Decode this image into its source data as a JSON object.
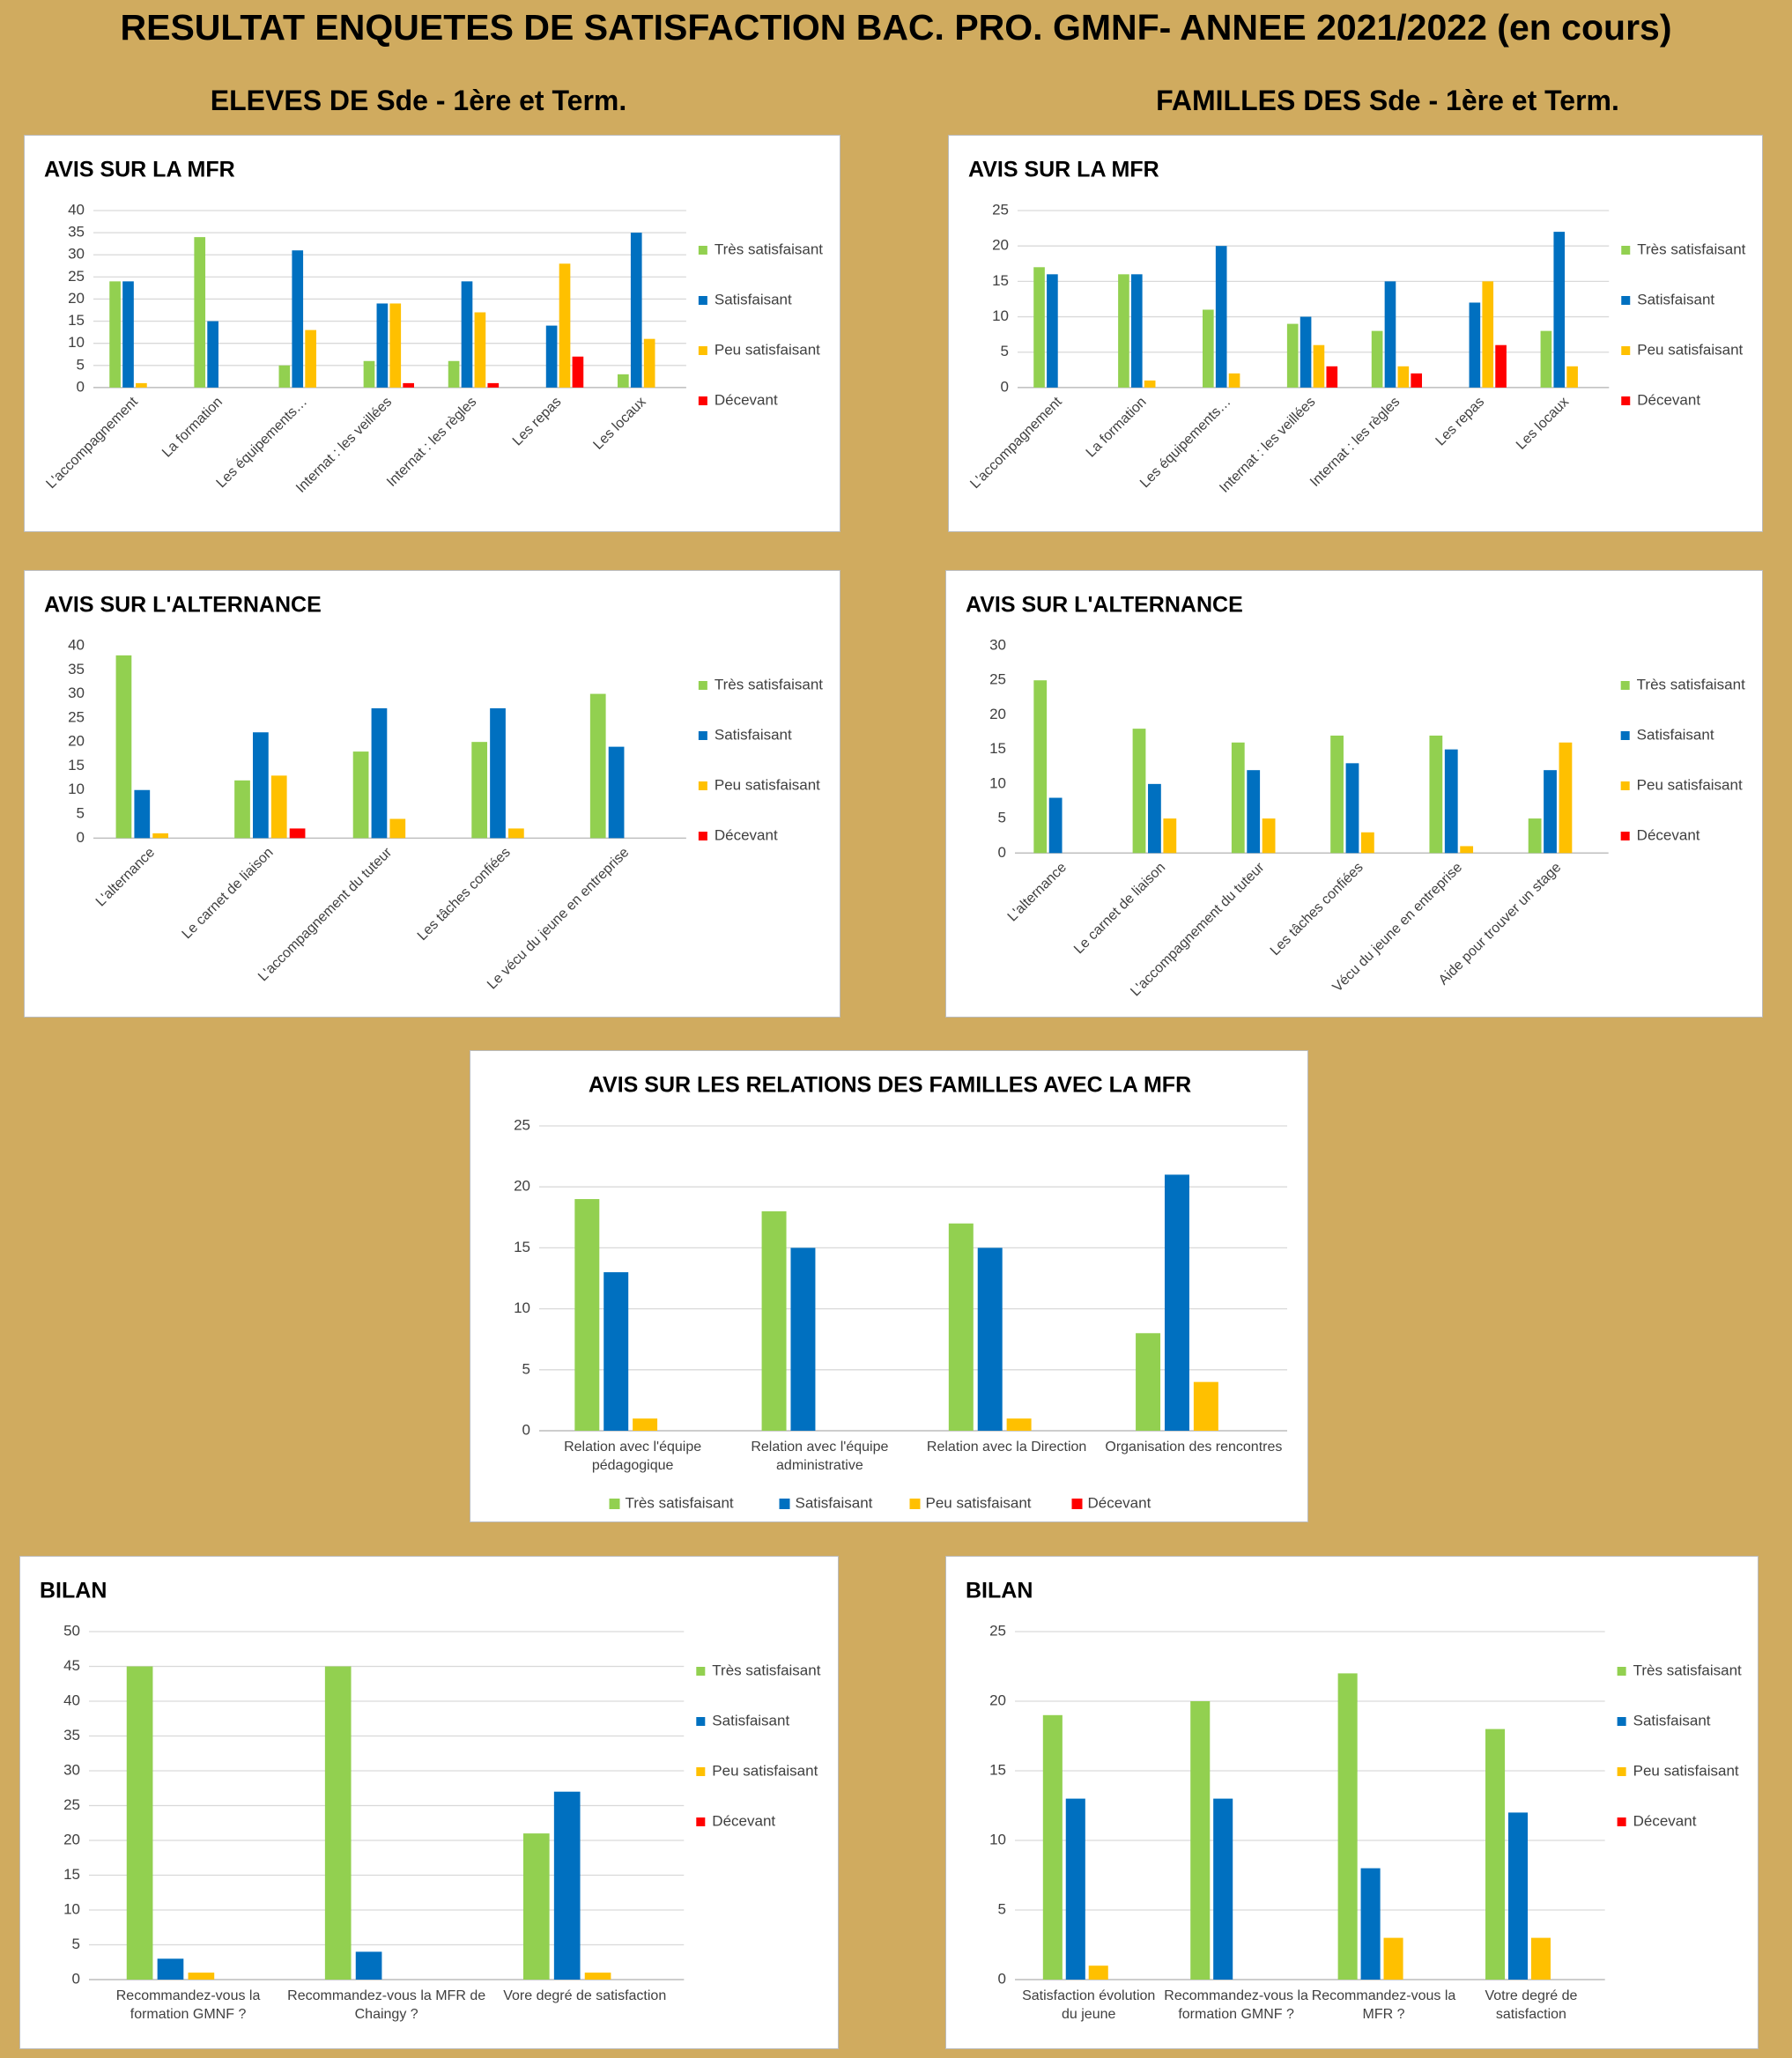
{
  "title": "RESULTAT ENQUETES DE SATISFACTION BAC. PRO. GMNF- ANNEE 2021/2022 (en cours)",
  "headings": [
    "ELEVES DE Sde - 1ère et Term.",
    "FAMILLES DES Sde - 1ère et Term."
  ],
  "chart_data": [
    {
      "type": "bar",
      "title": "AVIS SUR LA MFR",
      "legend": "right",
      "grid": true,
      "categories": [
        "L'accompagnement",
        "La formation",
        "Les équipements…",
        "Internat : les veillées",
        "Internat : les règles",
        "Les repas",
        "Les locaux"
      ],
      "ylim": [
        0,
        40
      ],
      "yticks": [
        0,
        5,
        10,
        15,
        20,
        25,
        30,
        35,
        40
      ],
      "series": [
        {
          "name": "Très satisfaisant",
          "color": "#92d050",
          "values": [
            24,
            34,
            5,
            6,
            6,
            0,
            3
          ]
        },
        {
          "name": "Satisfaisant",
          "color": "#0070c0",
          "values": [
            24,
            15,
            31,
            19,
            24,
            14,
            35
          ]
        },
        {
          "name": "Peu satisfaisant",
          "color": "#ffc000",
          "values": [
            1,
            0,
            13,
            19,
            17,
            28,
            11
          ]
        },
        {
          "name": "Décevant",
          "color": "#ff0000",
          "values": [
            0,
            0,
            0,
            1,
            1,
            7,
            0
          ]
        }
      ]
    },
    {
      "type": "bar",
      "title": "AVIS SUR LA MFR",
      "legend": "right",
      "grid": true,
      "categories": [
        "L'accompagnement",
        "La formation",
        "Les équipements…",
        "Internat : les veillées",
        "Internat : les règles",
        "Les repas",
        "Les locaux"
      ],
      "ylim": [
        0,
        25
      ],
      "yticks": [
        0,
        5,
        10,
        15,
        20,
        25
      ],
      "series": [
        {
          "name": "Très satisfaisant",
          "color": "#92d050",
          "values": [
            17,
            16,
            11,
            9,
            8,
            0,
            8
          ]
        },
        {
          "name": "Satisfaisant",
          "color": "#0070c0",
          "values": [
            16,
            16,
            20,
            10,
            15,
            12,
            22
          ]
        },
        {
          "name": "Peu satisfaisant",
          "color": "#ffc000",
          "values": [
            0,
            1,
            2,
            6,
            3,
            15,
            3
          ]
        },
        {
          "name": "Décevant",
          "color": "#ff0000",
          "values": [
            0,
            0,
            0,
            3,
            2,
            6,
            0
          ]
        }
      ]
    },
    {
      "type": "bar",
      "title": "AVIS SUR L'ALTERNANCE",
      "legend": "right",
      "grid": false,
      "categories": [
        "L'alternance",
        "Le carnet de liaison",
        "L'accompagnement du tuteur",
        "Les tâches confiées",
        "Le vécu du jeune en entreprise"
      ],
      "ylim": [
        0,
        40
      ],
      "yticks": [
        0,
        5,
        10,
        15,
        20,
        25,
        30,
        35,
        40
      ],
      "series": [
        {
          "name": "Très satisfaisant",
          "color": "#92d050",
          "values": [
            38,
            12,
            18,
            20,
            30
          ]
        },
        {
          "name": "Satisfaisant",
          "color": "#0070c0",
          "values": [
            10,
            22,
            27,
            27,
            19
          ]
        },
        {
          "name": "Peu satisfaisant",
          "color": "#ffc000",
          "values": [
            1,
            13,
            4,
            2,
            0
          ]
        },
        {
          "name": "Décevant",
          "color": "#ff0000",
          "values": [
            0,
            2,
            0,
            0,
            0
          ]
        }
      ]
    },
    {
      "type": "bar",
      "title": "AVIS SUR L'ALTERNANCE",
      "legend": "right",
      "grid": false,
      "categories": [
        "L'alternance",
        "Le carnet de liaison",
        "L'accompagnement du tuteur",
        "Les tâches confiées",
        "Vécu du jeune en entreprise",
        "Aide pour trouver un stage"
      ],
      "ylim": [
        0,
        30
      ],
      "yticks": [
        0,
        5,
        10,
        15,
        20,
        25,
        30
      ],
      "series": [
        {
          "name": "Très satisfaisant",
          "color": "#92d050",
          "values": [
            25,
            18,
            16,
            17,
            17,
            5
          ]
        },
        {
          "name": "Satisfaisant",
          "color": "#0070c0",
          "values": [
            8,
            10,
            12,
            13,
            15,
            12
          ]
        },
        {
          "name": "Peu satisfaisant",
          "color": "#ffc000",
          "values": [
            0,
            5,
            5,
            3,
            1,
            16
          ]
        },
        {
          "name": "Décevant",
          "color": "#ff0000",
          "values": [
            0,
            0,
            0,
            0,
            0,
            0
          ]
        }
      ]
    },
    {
      "type": "bar",
      "title": "AVIS SUR LES RELATIONS DES FAMILLES AVEC LA MFR",
      "legend": "bottom",
      "grid": true,
      "categories": [
        "Relation avec l'équipe pédagogique",
        "Relation avec l'équipe administrative",
        "Relation avec la Direction",
        "Organisation des rencontres"
      ],
      "ylim": [
        0,
        25
      ],
      "yticks": [
        0,
        5,
        10,
        15,
        20,
        25
      ],
      "series": [
        {
          "name": "Très satisfaisant",
          "color": "#92d050",
          "values": [
            19,
            18,
            17,
            8
          ]
        },
        {
          "name": "Satisfaisant",
          "color": "#0070c0",
          "values": [
            13,
            15,
            15,
            21
          ]
        },
        {
          "name": "Peu satisfaisant",
          "color": "#ffc000",
          "values": [
            1,
            0,
            1,
            4
          ]
        },
        {
          "name": "Décevant",
          "color": "#ff0000",
          "values": [
            0,
            0,
            0,
            0
          ]
        }
      ]
    },
    {
      "type": "bar",
      "title": "BILAN",
      "legend": "right",
      "grid": true,
      "categories": [
        "Recommandez-vous la formation GMNF ?",
        "Recommandez-vous la MFR de Chaingy ?",
        "Vore degré de satisfaction"
      ],
      "ylim": [
        0,
        50
      ],
      "yticks": [
        0,
        5,
        10,
        15,
        20,
        25,
        30,
        35,
        40,
        45,
        50
      ],
      "series": [
        {
          "name": "Très satisfaisant",
          "color": "#92d050",
          "values": [
            45,
            45,
            21
          ]
        },
        {
          "name": "Satisfaisant",
          "color": "#0070c0",
          "values": [
            3,
            4,
            27
          ]
        },
        {
          "name": "Peu satisfaisant",
          "color": "#ffc000",
          "values": [
            1,
            0,
            1
          ]
        },
        {
          "name": "Décevant",
          "color": "#ff0000",
          "values": [
            0,
            0,
            0
          ]
        }
      ]
    },
    {
      "type": "bar",
      "title": "BILAN",
      "legend": "right",
      "grid": true,
      "categories": [
        "Satisfaction évolution du jeune",
        "Recommandez-vous la formation GMNF ?",
        "Recommandez-vous la MFR  ?",
        "Votre degré de satisfaction"
      ],
      "ylim": [
        0,
        25
      ],
      "yticks": [
        0,
        5,
        10,
        15,
        20,
        25
      ],
      "series": [
        {
          "name": "Très satisfaisant",
          "color": "#92d050",
          "values": [
            19,
            20,
            22,
            18
          ]
        },
        {
          "name": "Satisfaisant",
          "color": "#0070c0",
          "values": [
            13,
            13,
            8,
            12
          ]
        },
        {
          "name": "Peu satisfaisant",
          "color": "#ffc000",
          "values": [
            1,
            0,
            3,
            3
          ]
        },
        {
          "name": "Décevant",
          "color": "#ff0000",
          "values": [
            0,
            0,
            0,
            0
          ]
        }
      ]
    }
  ]
}
